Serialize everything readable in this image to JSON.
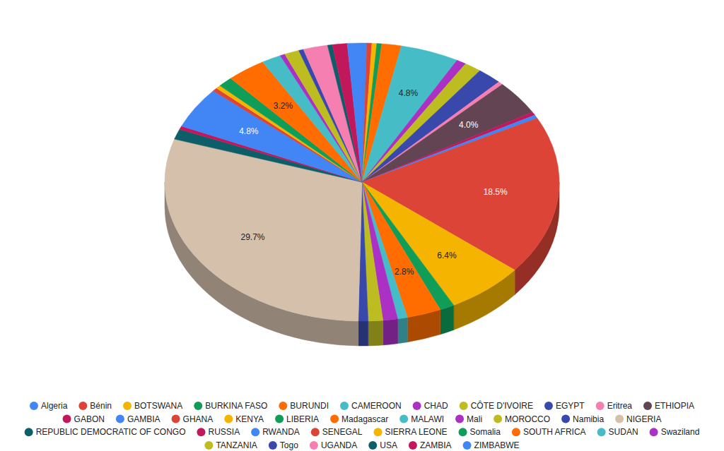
{
  "chart_data": {
    "type": "pie",
    "categories": [
      "Algeria",
      "Bénin",
      "BOTSWANA",
      "BURKINA FASO",
      "BURUNDI",
      "CAMEROON",
      "CHAD",
      "CÔTE D'IVOIRE",
      "EGYPT",
      "Eritrea",
      "ETHIOPIA",
      "GABON",
      "GAMBIA",
      "GHANA",
      "KENYA",
      "LIBERIA",
      "Madagascar",
      "MALAWI",
      "Mali",
      "MOROCCO",
      "Namibia",
      "NIGERIA",
      "REPUBLIC DEMOCRATIC OF CONGO",
      "RUSSIA",
      "RWANDA",
      "SENEGAL",
      "SIERRA LEONE",
      "Somalia",
      "SOUTH AFRICA",
      "SUDAN",
      "Swaziland",
      "TANZANIA",
      "Togo",
      "UGANDA",
      "USA",
      "ZAMBIA",
      "ZIMBABWE"
    ],
    "values": [
      0.4,
      0.4,
      0.4,
      0.4,
      1.6,
      4.8,
      0.8,
      1.4,
      2.0,
      0.4,
      4.0,
      0.4,
      0.4,
      18.5,
      6.4,
      1.2,
      2.8,
      0.8,
      1.2,
      1.2,
      0.8,
      29.7,
      1.2,
      0.4,
      4.8,
      0.4,
      0.4,
      1.2,
      3.2,
      1.6,
      0.4,
      1.2,
      0.4,
      2.0,
      0.4,
      1.2,
      1.2
    ],
    "value_labels": [
      null,
      null,
      null,
      null,
      null,
      "4.8%",
      null,
      null,
      null,
      null,
      "4.0%",
      null,
      null,
      "18.5%",
      "6.4%",
      null,
      "2.8%",
      null,
      null,
      null,
      null,
      "29.7%",
      null,
      null,
      "4.8%",
      null,
      null,
      null,
      "3.2%",
      null,
      null,
      null,
      null,
      null,
      null,
      null,
      null
    ],
    "colors": [
      "#4285F4",
      "#DB4437",
      "#F4B400",
      "#0F9D58",
      "#FF6D01",
      "#46BDC6",
      "#AB30C4",
      "#BDBD22",
      "#3949AB",
      "#F47FB0",
      "#634452",
      "#C2185B",
      "#4285F4",
      "#DB4437",
      "#F4B400",
      "#0F9D58",
      "#FF6D01",
      "#46BDC6",
      "#AB30C4",
      "#BDBD22",
      "#3949AB",
      "#D5C0AC",
      "#0E5E69",
      "#C2185B",
      "#4285F4",
      "#DB4437",
      "#F4B400",
      "#0F9D58",
      "#FF6D01",
      "#46BDC6",
      "#AB30C4",
      "#BDBD22",
      "#3949AB",
      "#F47FB0",
      "#0E5E69",
      "#C2185B",
      "#4285F4"
    ],
    "data_labels": true,
    "legend": "bottom"
  }
}
